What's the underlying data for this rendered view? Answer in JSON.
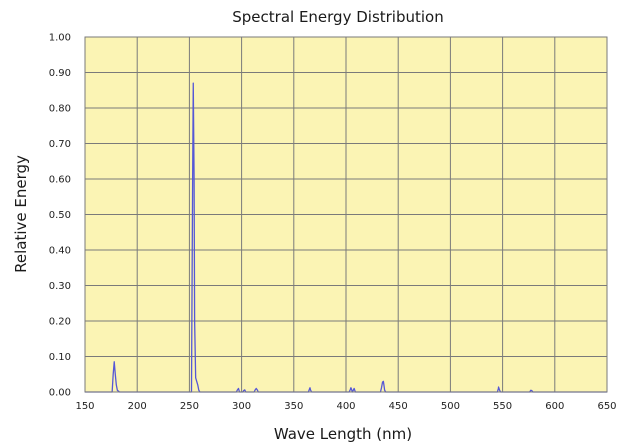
{
  "chart_data": {
    "type": "line",
    "title": "Spectral Energy Distribution",
    "xlabel": "Wave Length (nm)",
    "ylabel": "Relative Energy",
    "xlim": [
      150,
      650
    ],
    "ylim": [
      0,
      1.0
    ],
    "x_ticks": [
      "150",
      "200",
      "250",
      "300",
      "350",
      "400",
      "450",
      "500",
      "550",
      "600",
      "650"
    ],
    "y_ticks": [
      "0.00",
      "0.10",
      "0.20",
      "0.30",
      "0.40",
      "0.50",
      "0.60",
      "0.70",
      "0.80",
      "0.90",
      "1.00"
    ],
    "grid": true,
    "legend": "none",
    "series": [
      {
        "x": [
          150,
          176,
          177,
          178,
          179,
          180,
          181,
          183,
          252,
          253,
          253.7,
          254.5,
          255,
          256,
          258,
          259,
          260,
          295,
          296,
          297,
          298,
          301,
          302,
          303,
          304,
          312,
          313,
          314,
          315,
          316,
          364,
          365,
          365.5,
          366,
          367,
          403,
          404,
          404.7,
          405.5,
          406,
          407,
          407.8,
          408.5,
          409,
          433,
          434,
          435,
          435.8,
          436.5,
          437,
          438,
          545,
          546,
          546.1,
          547,
          548,
          576,
          577,
          578,
          579,
          650
        ],
        "y": [
          0,
          0,
          0.05,
          0.085,
          0.05,
          0.02,
          0.005,
          0,
          0,
          0.55,
          0.87,
          0.6,
          0.2,
          0.04,
          0.02,
          0.005,
          0,
          0,
          0.006,
          0.01,
          0,
          0,
          0.004,
          0.006,
          0,
          0,
          0.006,
          0.01,
          0.006,
          0,
          0,
          0.008,
          0.012,
          0.006,
          0,
          0,
          0.006,
          0.012,
          0.006,
          0,
          0.005,
          0.01,
          0.004,
          0,
          0,
          0.012,
          0.028,
          0.03,
          0.016,
          0.005,
          0,
          0,
          0.01,
          0.014,
          0.006,
          0,
          0,
          0.005,
          0.004,
          0,
          0
        ]
      }
    ]
  },
  "colors": {
    "plot_background": "#fbf4b4",
    "grid": "#7a7a7a",
    "line": "#5557d6",
    "text": "#1a1a1a"
  }
}
